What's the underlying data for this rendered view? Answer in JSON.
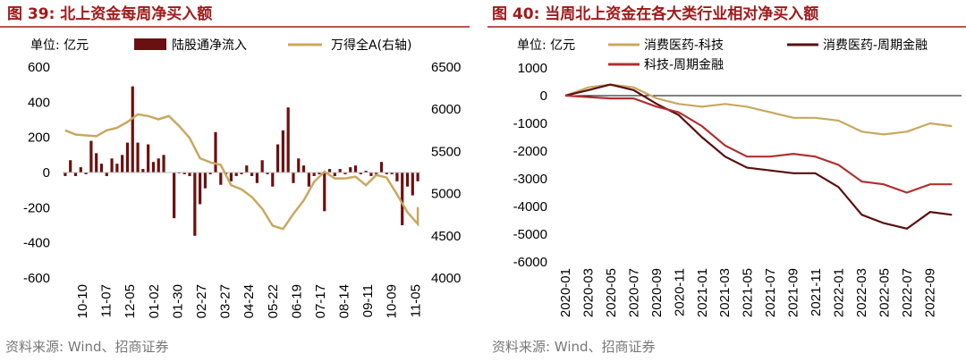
{
  "chart_data": [
    {
      "type": "bar",
      "title": "图 39:  北上资金每周净买入额",
      "unit": "单位:  亿元",
      "source": "资料来源:  Wind、招商证券",
      "x_tick_labels": [
        "10-10",
        "11-07",
        "12-05",
        "01-02",
        "01-30",
        "02-27",
        "03-27",
        "04-24",
        "05-22",
        "06-19",
        "07-17",
        "08-14",
        "09-11",
        "10-09",
        "11-05"
      ],
      "y_left_ticks": [
        "600",
        "400",
        "200",
        "0",
        "-200",
        "-400",
        "-600"
      ],
      "y_left_lim": [
        -600,
        600
      ],
      "y_right_ticks": [
        "6500",
        "6000",
        "5500",
        "5000",
        "4500",
        "4000"
      ],
      "y_right_lim": [
        4000,
        6500
      ],
      "colors": {
        "bars": "#6b1010",
        "line": "#c8a860"
      },
      "series": [
        {
          "name": "陆股通净流入",
          "kind": "bar",
          "axis": "left",
          "values": [
            -20,
            70,
            -20,
            30,
            -10,
            180,
            110,
            50,
            -20,
            80,
            50,
            100,
            170,
            490,
            170,
            20,
            160,
            60,
            80,
            100,
            0,
            -260,
            -5,
            -10,
            -20,
            -360,
            -180,
            -90,
            -10,
            230,
            -70,
            -10,
            -50,
            -20,
            -10,
            40,
            -20,
            -60,
            70,
            -10,
            -80,
            160,
            240,
            370,
            -60,
            80,
            40,
            -80,
            -20,
            -10,
            -220,
            20,
            -20,
            20,
            -10,
            30,
            40,
            -10,
            10,
            -20,
            -20,
            60,
            -10,
            -10,
            -50,
            -300,
            -80,
            -130,
            -50
          ],
          "x_step": 1
        },
        {
          "name": "万得全A(右轴)",
          "kind": "line",
          "axis": "right",
          "x_step": 2,
          "values": [
            5750,
            5700,
            5690,
            5680,
            5750,
            5780,
            5850,
            5940,
            5920,
            5880,
            5920,
            5800,
            5660,
            5420,
            5370,
            5340,
            5100,
            5050,
            4960,
            4820,
            4620,
            4580,
            4760,
            4920,
            5140,
            5260,
            5180,
            5180,
            5200,
            5100,
            5220,
            5190,
            4990,
            4780,
            4640,
            4800,
            4760,
            4840,
            4780
          ]
        }
      ]
    },
    {
      "type": "line",
      "title": "图 40:  当周北上资金在各大类行业相对净买入额",
      "unit": "单位:  亿元",
      "source": "资料来源:  Wind、招商证券",
      "x_tick_labels": [
        "2020-01",
        "2020-03",
        "2020-05",
        "2020-07",
        "2020-09",
        "2020-11",
        "2021-01",
        "2021-03",
        "2021-05",
        "2021-07",
        "2021-09",
        "2021-11",
        "2022-01",
        "2022-03",
        "2022-05",
        "2022-07",
        "2022-09"
      ],
      "y_ticks": [
        "1000",
        "0",
        "-1000",
        "-2000",
        "-3000",
        "-4000",
        "-5000",
        "-6000"
      ],
      "ylim": [
        -6000,
        1000
      ],
      "legend_placement": "top",
      "series": [
        {
          "name": "消费医药-科技",
          "color": "#c8a860",
          "x": [
            2020.0,
            2020.17,
            2020.33,
            2020.5,
            2020.67,
            2020.83,
            2021.0,
            2021.17,
            2021.33,
            2021.5,
            2021.67,
            2021.83,
            2022.0,
            2022.17,
            2022.33,
            2022.5,
            2022.67,
            2022.83
          ],
          "values": [
            0,
            300,
            400,
            300,
            -100,
            -300,
            -400,
            -300,
            -400,
            -600,
            -800,
            -800,
            -900,
            -1300,
            -1400,
            -1300,
            -1000,
            -1100
          ]
        },
        {
          "name": "消费医药-周期金融",
          "color": "#5a0f0f",
          "x": [
            2020.0,
            2020.17,
            2020.33,
            2020.5,
            2020.67,
            2020.83,
            2021.0,
            2021.17,
            2021.33,
            2021.5,
            2021.67,
            2021.83,
            2022.0,
            2022.17,
            2022.33,
            2022.5,
            2022.67,
            2022.83
          ],
          "values": [
            0,
            200,
            400,
            200,
            -300,
            -700,
            -1500,
            -2200,
            -2600,
            -2700,
            -2800,
            -2800,
            -3300,
            -4300,
            -4600,
            -4800,
            -4200,
            -4300
          ]
        },
        {
          "name": "科技-周期金融",
          "color": "#b03030",
          "x": [
            2020.0,
            2020.17,
            2020.33,
            2020.5,
            2020.67,
            2020.83,
            2021.0,
            2021.17,
            2021.33,
            2021.5,
            2021.67,
            2021.83,
            2022.0,
            2022.17,
            2022.33,
            2022.5,
            2022.67,
            2022.83
          ],
          "values": [
            0,
            -50,
            -100,
            -100,
            -400,
            -600,
            -1100,
            -1800,
            -2200,
            -2200,
            -2100,
            -2200,
            -2500,
            -3100,
            -3200,
            -3500,
            -3200,
            -3200
          ]
        }
      ]
    }
  ]
}
